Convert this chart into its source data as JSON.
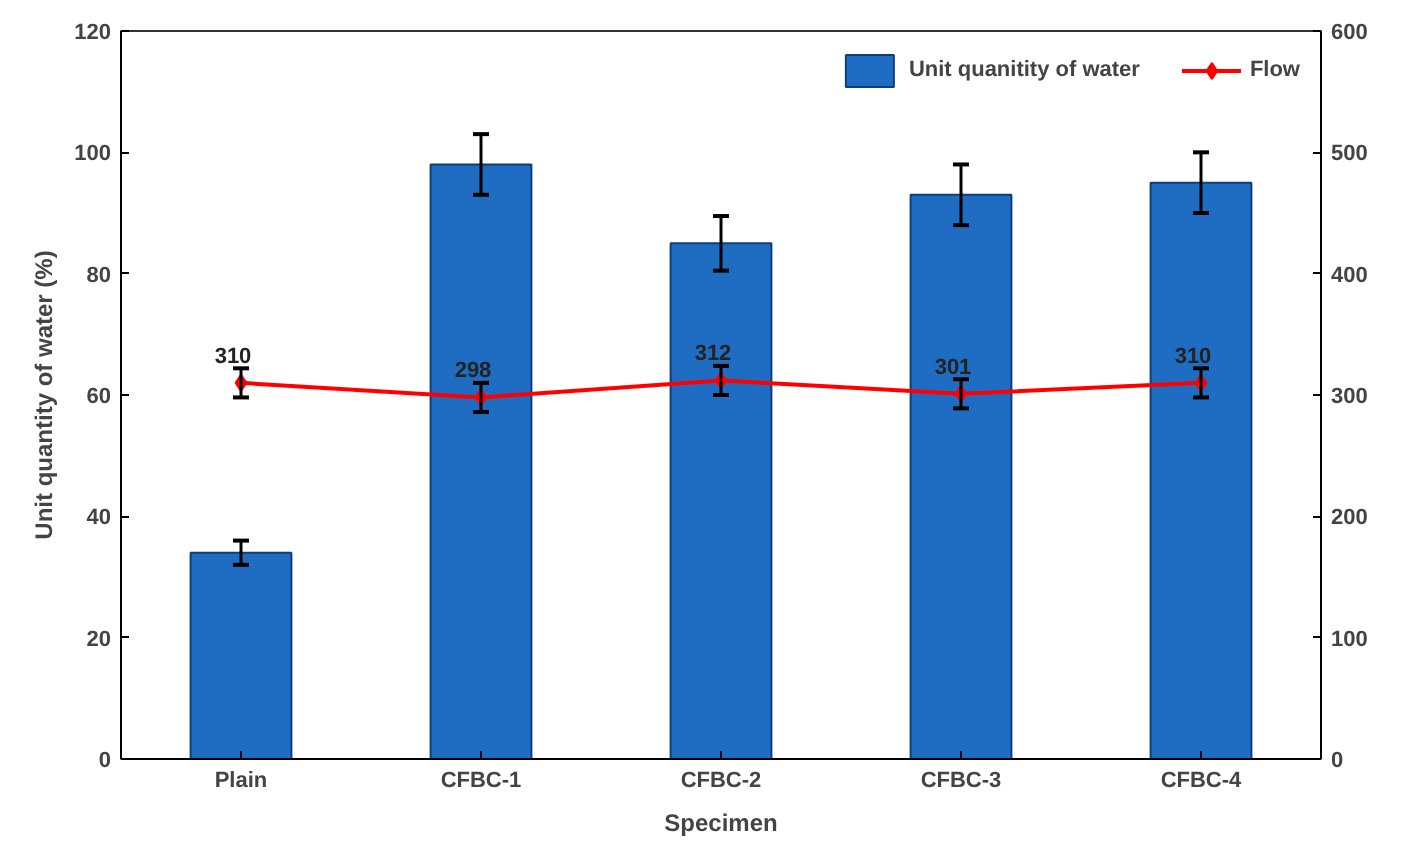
{
  "chart_data": {
    "type": "bar",
    "xlabel": "Specimen",
    "ylabel": "Unit quantity of water (%)",
    "categories": [
      "Plain",
      "CFBC-1",
      "CFBC-2",
      "CFBC-3",
      "CFBC-4"
    ],
    "series": [
      {
        "name": "Unit quanitity of water",
        "color": "#1f6dc2",
        "values": [
          34,
          98,
          85,
          93,
          95
        ],
        "errors": [
          2,
          5,
          4.5,
          5,
          5
        ]
      },
      {
        "name": "Flow",
        "type": "line",
        "axis": "y2",
        "color": "#ff0000",
        "marker": "diamond",
        "values": [
          310,
          298,
          312,
          301,
          310
        ],
        "errors": [
          12,
          12,
          12,
          12,
          12
        ],
        "value_labels": [
          "310",
          "298",
          "312",
          "301",
          "310"
        ]
      }
    ],
    "ylim": [
      0,
      120
    ],
    "yticks": [
      0,
      20,
      40,
      60,
      80,
      100,
      120
    ],
    "y2lim": [
      0,
      600
    ],
    "y2ticks": [
      0,
      100,
      200,
      300,
      400,
      500,
      600
    ],
    "grid": false,
    "legend": "top right"
  }
}
